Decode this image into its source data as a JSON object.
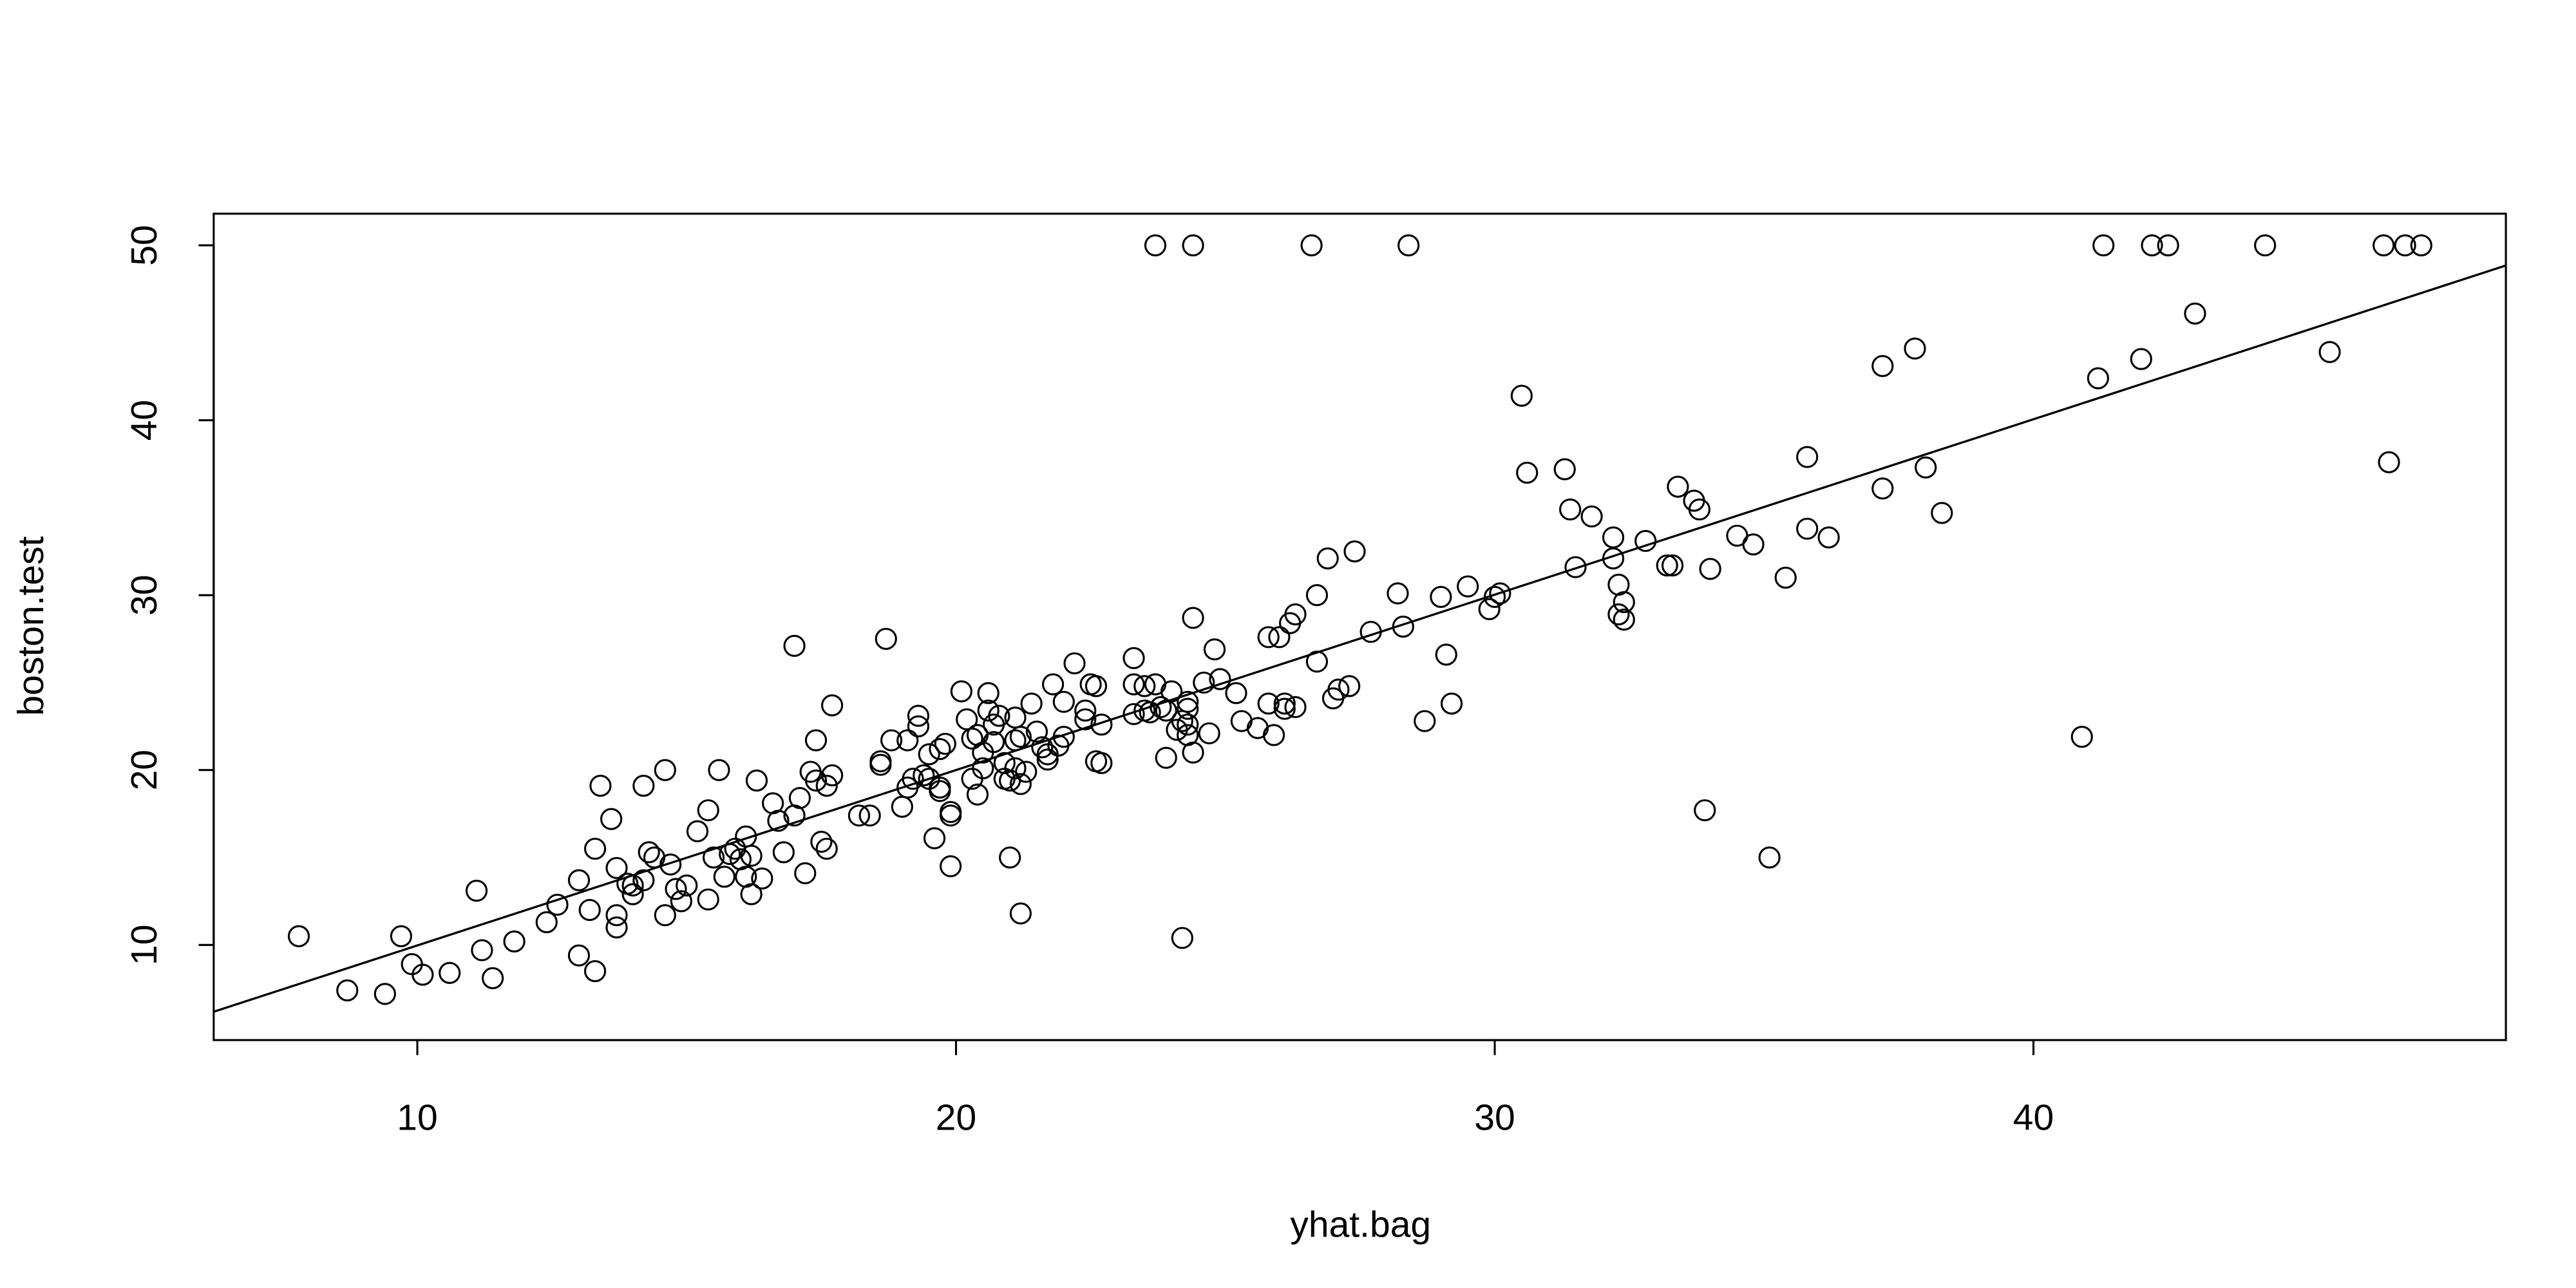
{
  "chart_data": {
    "type": "scatter",
    "x_label": "yhat.bag",
    "y_label": "boston.test",
    "xlim": [
      6.22,
      48.77
    ],
    "ylim": [
      4.56,
      51.81
    ],
    "xticks": [
      10,
      20,
      30,
      40
    ],
    "yticks": [
      10,
      20,
      30,
      40,
      50
    ],
    "color": "#000000",
    "x": [
      7.8,
      8.7,
      9.4,
      9.7,
      9.9,
      10.1,
      10.6,
      11.1,
      11.2,
      11.4,
      11.8,
      12.4,
      12.6,
      13.0,
      13.0,
      13.2,
      13.3,
      13.3,
      13.4,
      13.6,
      13.7,
      13.7,
      13.7,
      13.9,
      14.0,
      14.0,
      14.2,
      14.2,
      14.3,
      14.4,
      14.6,
      14.6,
      14.7,
      14.8,
      14.9,
      15.0,
      15.2,
      15.4,
      15.4,
      15.5,
      15.6,
      15.7,
      15.8,
      15.9,
      16.0,
      16.1,
      16.1,
      16.2,
      16.2,
      16.3,
      16.4,
      16.6,
      16.7,
      16.8,
      17.0,
      17.0,
      17.1,
      17.2,
      17.3,
      17.4,
      17.4,
      17.5,
      17.6,
      17.6,
      17.7,
      17.7,
      18.2,
      18.4,
      18.6,
      18.6,
      18.7,
      18.8,
      19.0,
      19.1,
      19.1,
      19.2,
      19.3,
      19.3,
      19.4,
      19.5,
      19.5,
      19.6,
      19.7,
      19.7,
      19.7,
      19.8,
      19.9,
      19.9,
      19.9,
      20.1,
      20.2,
      20.3,
      20.3,
      20.4,
      20.4,
      20.5,
      20.5,
      20.6,
      20.6,
      20.7,
      20.7,
      20.8,
      20.9,
      20.9,
      21.0,
      21.0,
      21.1,
      21.1,
      21.1,
      21.2,
      21.2,
      21.2,
      21.3,
      21.4,
      21.5,
      21.6,
      21.7,
      21.7,
      21.8,
      21.9,
      22.0,
      22.0,
      22.2,
      22.4,
      22.4,
      22.5,
      22.6,
      22.6,
      22.7,
      22.7,
      23.3,
      23.3,
      23.3,
      23.5,
      23.5,
      23.6,
      23.7,
      23.7,
      23.8,
      23.9,
      23.9,
      24.0,
      24.1,
      24.2,
      24.2,
      24.3,
      24.3,
      24.3,
      24.3,
      24.4,
      24.4,
      24.4,
      24.6,
      24.7,
      24.8,
      24.9,
      25.2,
      25.3,
      25.6,
      25.8,
      25.8,
      25.9,
      26.0,
      26.1,
      26.1,
      26.2,
      26.3,
      26.3,
      26.6,
      26.7,
      26.7,
      26.9,
      27.0,
      27.1,
      27.3,
      27.4,
      27.7,
      28.2,
      28.3,
      28.4,
      28.7,
      29.0,
      29.1,
      29.2,
      29.5,
      29.9,
      30.0,
      30.1,
      30.5,
      30.6,
      31.3,
      31.4,
      31.5,
      31.8,
      32.2,
      32.2,
      32.3,
      32.3,
      32.4,
      32.4,
      32.8,
      33.2,
      33.3,
      33.4,
      33.7,
      33.8,
      34.0,
      33.9,
      34.5,
      34.8,
      35.1,
      35.4,
      35.8,
      35.8,
      36.2,
      37.2,
      37.2,
      37.8,
      38.0,
      38.3,
      40.9,
      41.2,
      41.3,
      42.0,
      42.2,
      42.5,
      43.0,
      44.3,
      45.5,
      46.5,
      46.6,
      46.9,
      47.2
    ],
    "y": [
      10.5,
      7.4,
      7.2,
      10.5,
      8.9,
      8.3,
      8.4,
      13.1,
      9.7,
      8.1,
      10.2,
      11.3,
      12.3,
      9.4,
      13.7,
      12.0,
      8.5,
      15.5,
      19.1,
      17.2,
      14.4,
      11.7,
      11.0,
      13.5,
      13.4,
      12.9,
      19.1,
      13.7,
      15.3,
      15.0,
      20.0,
      11.7,
      14.6,
      13.2,
      12.5,
      13.4,
      16.5,
      17.7,
      12.6,
      15.0,
      20.0,
      13.9,
      15.2,
      15.5,
      14.9,
      16.2,
      13.9,
      15.1,
      12.9,
      19.4,
      13.8,
      18.1,
      17.1,
      15.3,
      17.4,
      27.1,
      18.4,
      14.1,
      19.9,
      21.7,
      19.4,
      15.9,
      15.5,
      19.1,
      23.7,
      19.7,
      17.4,
      17.4,
      20.5,
      20.3,
      27.5,
      21.7,
      17.9,
      21.7,
      19.0,
      19.5,
      23.1,
      22.5,
      19.7,
      19.5,
      20.9,
      16.1,
      18.8,
      19.0,
      21.2,
      21.5,
      14.5,
      17.4,
      17.6,
      24.5,
      22.9,
      21.8,
      19.5,
      22.0,
      18.6,
      21.0,
      20.1,
      24.4,
      23.4,
      22.6,
      21.6,
      23.1,
      19.5,
      20.4,
      19.4,
      15.0,
      21.7,
      23.0,
      20.1,
      11.8,
      19.2,
      21.9,
      19.9,
      23.8,
      22.2,
      21.3,
      20.9,
      20.6,
      24.9,
      21.4,
      21.9,
      23.9,
      26.1,
      23.4,
      22.9,
      24.9,
      24.8,
      20.5,
      22.6,
      20.4,
      26.4,
      24.9,
      23.2,
      24.8,
      23.4,
      23.3,
      24.9,
      50,
      23.6,
      20.7,
      23.4,
      24.5,
      22.3,
      22.8,
      10.4,
      22.6,
      23.5,
      22.0,
      23.9,
      28.7,
      50,
      21.0,
      25.0,
      22.1,
      26.9,
      25.2,
      24.4,
      22.8,
      22.4,
      27.6,
      23.8,
      22.0,
      27.6,
      23.8,
      23.5,
      28.4,
      28.9,
      23.6,
      50,
      26.2,
      30.0,
      32.1,
      24.1,
      24.6,
      24.8,
      32.5,
      27.9,
      30.1,
      28.2,
      50,
      22.8,
      29.9,
      26.6,
      23.8,
      30.5,
      29.2,
      29.9,
      30.1,
      41.4,
      37.0,
      37.2,
      34.9,
      31.6,
      34.5,
      32.1,
      33.3,
      30.6,
      28.9,
      29.6,
      28.6,
      33.1,
      31.7,
      31.7,
      36.2,
      35.4,
      34.9,
      31.5,
      17.7,
      33.4,
      32.9,
      15.0,
      31.0,
      37.9,
      33.8,
      33.3,
      36.1,
      43.1,
      44.1,
      37.3,
      34.7,
      21.9,
      42.4,
      50,
      43.5,
      50,
      50,
      46.1,
      50,
      43.9,
      50,
      37.6,
      50,
      50
    ],
    "fit_line": {
      "x": [
        6.22,
        48.77
      ],
      "y": [
        6.18,
        48.85
      ]
    }
  }
}
